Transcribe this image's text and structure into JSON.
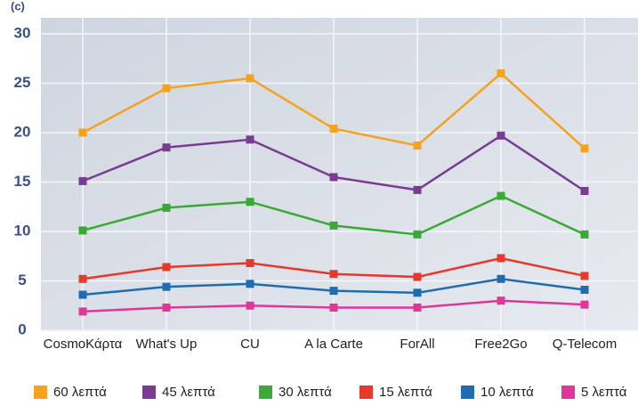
{
  "chart_data": {
    "type": "line",
    "annotation": "(c)",
    "categories": [
      "CosmoΚάρτα",
      "What's Up",
      "CU",
      "A la Carte",
      "ForAll",
      "Free2Go",
      "Q-Telecom"
    ],
    "series": [
      {
        "name": "60 λεπτά",
        "color": "#f5a21e",
        "values": [
          20,
          24.5,
          25.5,
          20.4,
          18.7,
          26,
          18.4
        ]
      },
      {
        "name": "45 λεπτά",
        "color": "#7a3b93",
        "values": [
          15.1,
          18.5,
          19.3,
          15.5,
          14.2,
          19.7,
          14.1
        ]
      },
      {
        "name": "30 λεπτά",
        "color": "#3aa935",
        "values": [
          10.1,
          12.4,
          13,
          10.6,
          9.7,
          13.6,
          9.7
        ]
      },
      {
        "name": "15 λεπτά",
        "color": "#e5392b",
        "values": [
          5.2,
          6.4,
          6.8,
          5.7,
          5.4,
          7.3,
          5.5
        ]
      },
      {
        "name": "10 λεπτά",
        "color": "#1f6db0",
        "values": [
          3.6,
          4.4,
          4.7,
          4,
          3.8,
          5.2,
          4.1
        ]
      },
      {
        "name": "5 λεπτά",
        "color": "#df369a",
        "values": [
          1.9,
          2.3,
          2.5,
          2.3,
          2.3,
          3,
          2.6
        ]
      }
    ],
    "ylim": [
      0,
      30
    ],
    "yticks": [
      0,
      5,
      10,
      15,
      20,
      25,
      30
    ],
    "grid": true,
    "legend": "bottom"
  }
}
